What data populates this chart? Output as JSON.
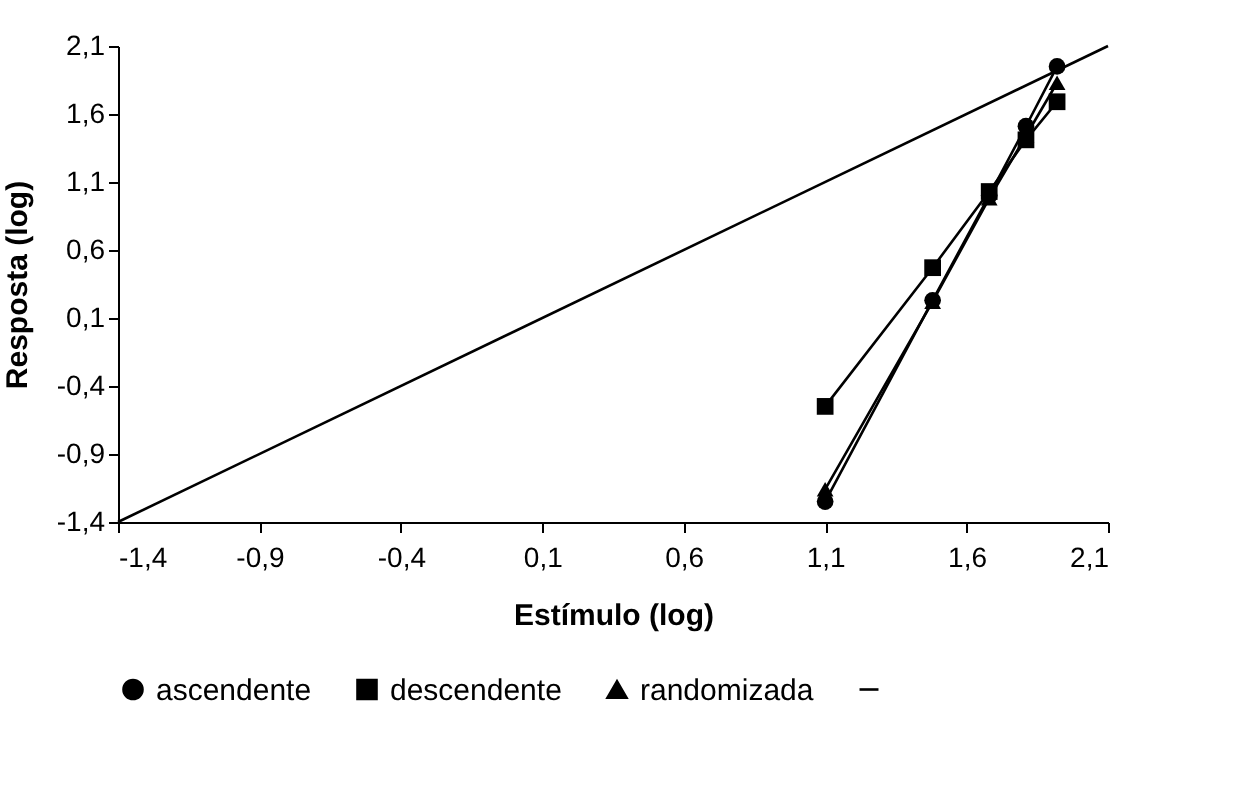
{
  "chart_data": {
    "type": "line",
    "xlabel": "Estímulo (log)",
    "ylabel": "Resposta (log)",
    "x": [
      1.1,
      1.48,
      1.68,
      1.81,
      1.92
    ],
    "series": [
      {
        "name": "ascendente",
        "color": "#000000",
        "marker": "circle",
        "values": [
          -1.25,
          0.23,
          1.0,
          1.51,
          1.95
        ]
      },
      {
        "name": "descendente",
        "color": "#000000",
        "marker": "square",
        "values": [
          -0.55,
          0.47,
          1.03,
          1.41,
          1.69
        ]
      },
      {
        "name": "randomizada",
        "color": "#000000",
        "marker": "triangle",
        "values": [
          -1.16,
          0.22,
          0.98,
          1.44,
          1.83
        ]
      },
      {
        "color": "#000000",
        "marker": "none",
        "x": [
          -1.4,
          2.1
        ],
        "values": [
          -1.4,
          2.1
        ]
      }
    ],
    "xlim": [
      -1.4,
      2.1
    ],
    "ylim": [
      -1.4,
      2.1
    ],
    "xticks": [
      {
        "value": -1.4,
        "label": "-1,4"
      },
      {
        "value": -0.9,
        "label": "-0,9"
      },
      {
        "value": -0.4,
        "label": "-0,4"
      },
      {
        "value": 0.1,
        "label": "0,1"
      },
      {
        "value": 0.6,
        "label": "0,6"
      },
      {
        "value": 1.1,
        "label": "1,1"
      },
      {
        "value": 1.6,
        "label": "1,6"
      },
      {
        "value": 2.1,
        "label": "2,1"
      }
    ],
    "yticks": [
      {
        "value": -1.4,
        "label": "-1,4"
      },
      {
        "value": -0.9,
        "label": "-0,9"
      },
      {
        "value": -0.4,
        "label": "-0,4"
      },
      {
        "value": 0.1,
        "label": "0,1"
      },
      {
        "value": 0.6,
        "label": "0,6"
      },
      {
        "value": 1.1,
        "label": "1,1"
      },
      {
        "value": 1.6,
        "label": "1,6"
      },
      {
        "value": 2.1,
        "label": "2,1"
      }
    ],
    "grid": false,
    "legend": "bottom",
    "line_style": "solid"
  }
}
